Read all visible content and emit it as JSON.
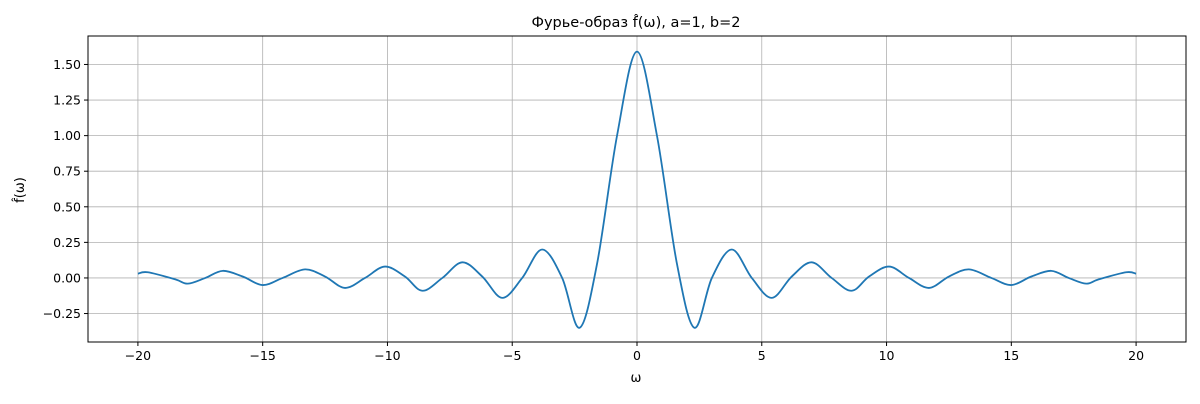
{
  "chart_data": {
    "type": "line",
    "title": "Фурье-образ f̂(ω), a=1, b=2",
    "xlabel": "ω",
    "ylabel": "f̂(ω)",
    "xlim": [
      -22,
      22
    ],
    "ylim": [
      -0.45,
      1.7
    ],
    "xticks": [
      -20,
      -15,
      -10,
      -5,
      0,
      5,
      10,
      15,
      20
    ],
    "xtick_labels": [
      "−20",
      "−15",
      "−10",
      "−5",
      "0",
      "5",
      "10",
      "15",
      "20"
    ],
    "yticks": [
      -0.25,
      0.0,
      0.25,
      0.5,
      0.75,
      1.0,
      1.25,
      1.5
    ],
    "ytick_labels": [
      "−0.25",
      "0.00",
      "0.25",
      "0.50",
      "0.75",
      "1.00",
      "1.25",
      "1.50"
    ],
    "grid": true,
    "series": [
      {
        "color": "#1f77b4",
        "x": [
          -20,
          -19.6,
          -18.5,
          -18.0,
          -17.3,
          -16.6,
          -15.8,
          -15.0,
          -14.2,
          -13.3,
          -12.5,
          -11.7,
          -10.9,
          -10.1,
          -9.3,
          -8.6,
          -7.8,
          -7.0,
          -6.2,
          -5.4,
          -4.6,
          -3.8,
          -3.0,
          -2.3,
          -1.6,
          -0.8,
          0,
          0.8,
          1.6,
          2.3,
          3.0,
          3.8,
          4.6,
          5.4,
          6.2,
          7.0,
          7.8,
          8.6,
          9.3,
          10.1,
          10.9,
          11.7,
          12.5,
          13.3,
          14.2,
          15.0,
          15.8,
          16.6,
          17.3,
          18.0,
          18.5,
          19.6,
          20
        ],
        "y": [
          0.03,
          0.04,
          -0.01,
          -0.04,
          0.0,
          0.05,
          0.01,
          -0.05,
          0.0,
          0.06,
          0.01,
          -0.07,
          0.0,
          0.08,
          0.01,
          -0.09,
          0.0,
          0.11,
          0.01,
          -0.14,
          0.0,
          0.2,
          0.0,
          -0.35,
          0.1,
          1.0,
          1.59,
          1.0,
          0.1,
          -0.35,
          0.0,
          0.2,
          0.0,
          -0.14,
          0.01,
          0.11,
          0.0,
          -0.09,
          0.01,
          0.08,
          0.0,
          -0.07,
          0.01,
          0.06,
          0.0,
          -0.05,
          0.01,
          0.05,
          0.0,
          -0.04,
          -0.01,
          0.04,
          0.03
        ]
      }
    ]
  }
}
